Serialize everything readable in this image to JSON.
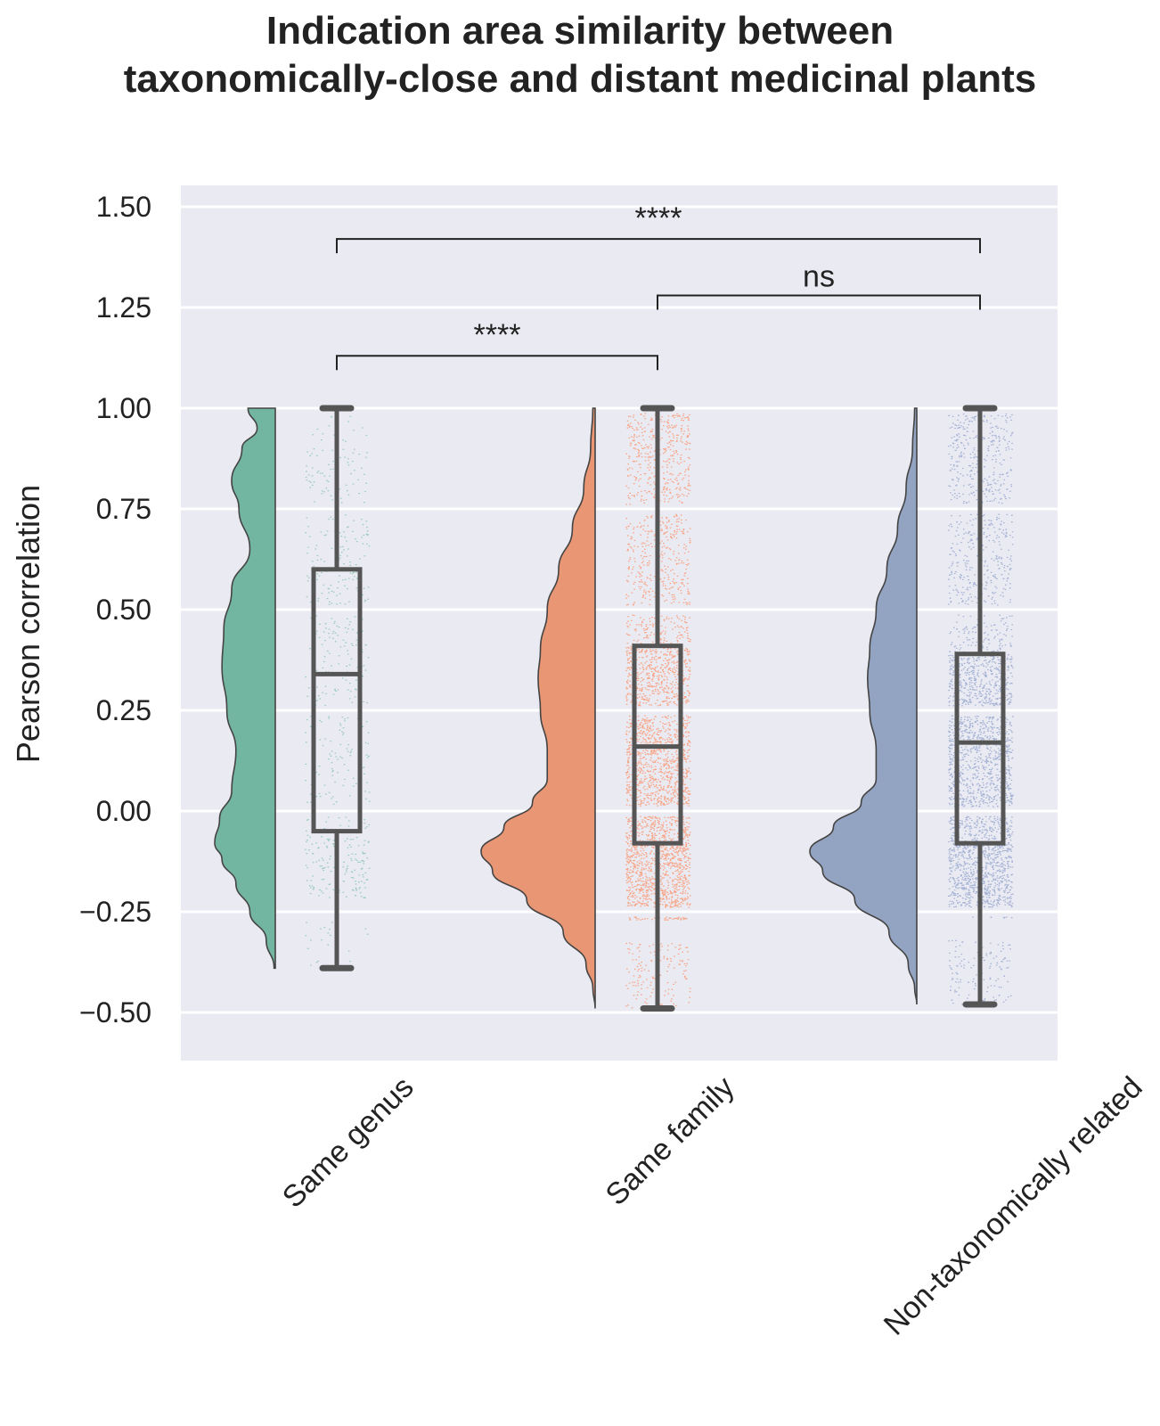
{
  "chart_data": {
    "type": "raincloud",
    "title": [
      "Indication area similarity between",
      "taxonomically-close and distant medicinal plants"
    ],
    "xlabel": "",
    "ylabel": "Pearson correlation",
    "ylim": [
      -0.55,
      1.55
    ],
    "yticks": [
      1.5,
      1.25,
      1.0,
      0.75,
      0.5,
      0.25,
      0.0,
      -0.25,
      -0.5
    ],
    "ytick_labels": [
      "1.50",
      "1.25",
      "1.00",
      "0.75",
      "0.50",
      "0.25",
      "0.00",
      "−0.25",
      "−0.50"
    ],
    "grid": true,
    "categories": [
      "Same genus",
      "Same family",
      "Non-taxonomically related"
    ],
    "series": [
      {
        "name": "Same genus",
        "color": "#72b6a1",
        "points_color": "#5fb597",
        "point_density": "sparse",
        "box": {
          "whisker_low": -0.39,
          "q1": -0.05,
          "median": 0.34,
          "q3": 0.6,
          "whisker_high": 1.0
        },
        "density": {
          "y": [
            1.0,
            0.95,
            0.9,
            0.82,
            0.75,
            0.65,
            0.55,
            0.45,
            0.36,
            0.25,
            0.15,
            0.05,
            -0.02,
            -0.08,
            -0.12,
            -0.18,
            -0.25,
            -0.32,
            -0.39
          ],
          "width": [
            0.45,
            0.3,
            0.55,
            0.72,
            0.6,
            0.42,
            0.72,
            0.85,
            0.88,
            0.8,
            0.65,
            0.72,
            0.92,
            1.0,
            0.88,
            0.65,
            0.42,
            0.15,
            0.02
          ]
        }
      },
      {
        "name": "Same family",
        "color": "#e99675",
        "points_color": "#fc8d62",
        "point_density": "dense",
        "box": {
          "whisker_low": -0.49,
          "q1": -0.08,
          "median": 0.16,
          "q3": 0.41,
          "whisker_high": 1.0
        },
        "density": {
          "y": [
            1.0,
            0.9,
            0.8,
            0.7,
            0.6,
            0.5,
            0.4,
            0.33,
            0.25,
            0.15,
            0.08,
            0.02,
            -0.04,
            -0.1,
            -0.15,
            -0.22,
            -0.3,
            -0.38,
            -0.44,
            -0.49
          ],
          "width": [
            0.02,
            0.04,
            0.1,
            0.2,
            0.32,
            0.42,
            0.48,
            0.5,
            0.48,
            0.42,
            0.42,
            0.55,
            0.8,
            1.0,
            0.9,
            0.6,
            0.28,
            0.08,
            0.02,
            0.0
          ]
        }
      },
      {
        "name": "Non-taxonomically related",
        "color": "#93a3c2",
        "points_color": "#8da0cb",
        "point_density": "dense",
        "box": {
          "whisker_low": -0.48,
          "q1": -0.08,
          "median": 0.17,
          "q3": 0.39,
          "whisker_high": 1.0
        },
        "density": {
          "y": [
            1.0,
            0.9,
            0.8,
            0.7,
            0.6,
            0.5,
            0.4,
            0.33,
            0.25,
            0.15,
            0.08,
            0.02,
            -0.04,
            -0.1,
            -0.15,
            -0.22,
            -0.3,
            -0.38,
            -0.44,
            -0.48
          ],
          "width": [
            0.02,
            0.04,
            0.1,
            0.18,
            0.28,
            0.38,
            0.44,
            0.46,
            0.44,
            0.38,
            0.38,
            0.52,
            0.78,
            1.0,
            0.88,
            0.58,
            0.26,
            0.08,
            0.02,
            0.0
          ]
        }
      }
    ],
    "significance": [
      {
        "from": "Same genus",
        "to": "Same family",
        "label": "****",
        "level": 1.13
      },
      {
        "from": "Same family",
        "to": "Non-taxonomically related",
        "label": "ns",
        "level": 1.28
      },
      {
        "from": "Same genus",
        "to": "Non-taxonomically related",
        "label": "****",
        "level": 1.42
      }
    ]
  }
}
